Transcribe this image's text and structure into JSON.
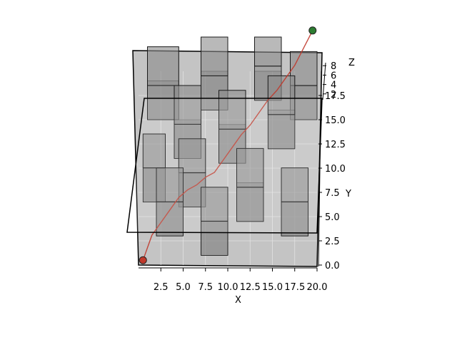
{
  "chart_data": {
    "type": "3d-scene",
    "title": "",
    "xlabel": "X",
    "ylabel": "Y",
    "zlabel": "Z",
    "xlim": [
      0,
      20
    ],
    "ylim": [
      0,
      20
    ],
    "zlim": [
      0,
      10
    ],
    "x_ticks": [
      "2.5",
      "5.0",
      "7.5",
      "10.0",
      "12.5",
      "15.0",
      "17.5",
      "20.0"
    ],
    "y_ticks": [
      "0.0",
      "2.5",
      "5.0",
      "7.5",
      "10.0",
      "12.5",
      "15.0",
      "17.5"
    ],
    "z_ticks": [
      "2",
      "4",
      "6",
      "8"
    ],
    "grid": true,
    "colors": {
      "pane": "#c4c4c4",
      "obstacle_fill": "#8a8a8a",
      "obstacle_edge": "#1a1a1a",
      "path": "#c0392b",
      "start": "#c0392b",
      "goal": "#2e7d32"
    },
    "start": {
      "x": 0.5,
      "y": 0.5,
      "z": 0
    },
    "goal": {
      "x": 19.5,
      "y": 19.5,
      "z": 8
    },
    "path": [
      [
        0.5,
        0.5,
        0
      ],
      [
        1.0,
        1.5,
        0.5
      ],
      [
        1.5,
        2.5,
        1.0
      ],
      [
        2.5,
        3.5,
        1.5
      ],
      [
        3.5,
        4.5,
        2.0
      ],
      [
        4.5,
        5.5,
        2.5
      ],
      [
        5.5,
        6.0,
        3.0
      ],
      [
        6.5,
        6.5,
        3.0
      ],
      [
        7.5,
        7.0,
        3.5
      ],
      [
        8.5,
        7.5,
        3.5
      ],
      [
        9.5,
        8.5,
        4.0
      ],
      [
        10.5,
        9.5,
        4.5
      ],
      [
        11.5,
        10.5,
        5.0
      ],
      [
        12.5,
        11.5,
        5.0
      ],
      [
        13.5,
        12.5,
        5.5
      ],
      [
        14.5,
        13.5,
        6.0
      ],
      [
        15.5,
        14.5,
        6.0
      ],
      [
        16.5,
        15.5,
        6.5
      ],
      [
        17.5,
        16.5,
        7.0
      ],
      [
        18.5,
        18.0,
        7.5
      ],
      [
        19.5,
        19.5,
        8
      ]
    ],
    "obstacles": [
      {
        "x": [
          0.5,
          3.0
        ],
        "y": [
          6.5,
          10.0
        ],
        "z": [
          0,
          6
        ]
      },
      {
        "x": [
          2.0,
          5.0
        ],
        "y": [
          3.0,
          6.5
        ],
        "z": [
          0,
          6
        ]
      },
      {
        "x": [
          4.5,
          7.5
        ],
        "y": [
          6.0,
          9.5
        ],
        "z": [
          0,
          6
        ]
      },
      {
        "x": [
          7.0,
          10.0
        ],
        "y": [
          1.0,
          4.5
        ],
        "z": [
          0,
          6
        ]
      },
      {
        "x": [
          11.0,
          14.0
        ],
        "y": [
          4.5,
          8.5
        ],
        "z": [
          0,
          6
        ]
      },
      {
        "x": [
          16.0,
          19.0
        ],
        "y": [
          3.0,
          6.5
        ],
        "z": [
          0,
          6
        ]
      },
      {
        "x": [
          9.0,
          12.0
        ],
        "y": [
          10.5,
          14.5
        ],
        "z": [
          0,
          6
        ]
      },
      {
        "x": [
          4.0,
          7.0
        ],
        "y": [
          11.0,
          15.0
        ],
        "z": [
          0,
          6
        ]
      },
      {
        "x": [
          14.5,
          17.5
        ],
        "y": [
          12.0,
          16.0
        ],
        "z": [
          0,
          6
        ]
      },
      {
        "x": [
          1.0,
          4.5
        ],
        "y": [
          15.0,
          19.0
        ],
        "z": [
          0,
          6
        ]
      },
      {
        "x": [
          7.0,
          10.0
        ],
        "y": [
          16.0,
          20.0
        ],
        "z": [
          0,
          6
        ]
      },
      {
        "x": [
          13.0,
          16.0
        ],
        "y": [
          17.0,
          20.0
        ],
        "z": [
          0,
          6
        ]
      },
      {
        "x": [
          17.0,
          20.0
        ],
        "y": [
          15.0,
          18.5
        ],
        "z": [
          0,
          6
        ]
      }
    ]
  }
}
